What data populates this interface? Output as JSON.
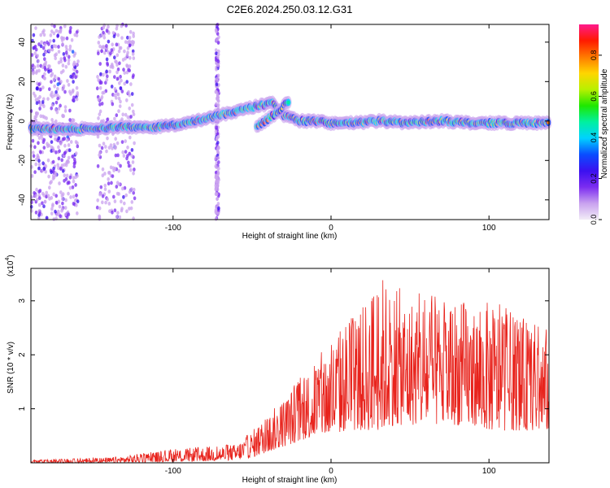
{
  "title": "C2E6.2024.250.03.12.G31",
  "colors": {
    "snr_line": "#e8231c",
    "axis": "#000000",
    "colormap": [
      "#f2ecf7",
      "#c9a2ef",
      "#7b2cf0",
      "#3b10f0",
      "#0a4cff",
      "#00d2ff",
      "#00f0a0",
      "#1ee800",
      "#b8f000",
      "#ffd500",
      "#ff7a00",
      "#ff1a00",
      "#ff1a8c"
    ]
  },
  "chart_data": [
    {
      "type": "heatmap",
      "xlabel": "Height of straight line (km)",
      "ylabel": "Frequency (Hz)",
      "xlim": [
        -190,
        138
      ],
      "ylim": [
        -50,
        49
      ],
      "x_ticks": [
        -100,
        0,
        100
      ],
      "x_tick_labels": [
        "-100",
        "0",
        "100"
      ],
      "y_ticks": [
        -40,
        -20,
        0,
        20,
        40
      ],
      "y_tick_labels": [
        "-40",
        "-20",
        "0",
        "20",
        "40"
      ],
      "colorbar": {
        "label": "Normalized spectral amplitude",
        "range": [
          0,
          0.95
        ],
        "ticks": [
          0,
          0.2,
          0.4,
          0.6,
          0.8
        ],
        "tick_labels": [
          "0.0",
          "0.2",
          "0.4",
          "0.6",
          "0.8"
        ]
      },
      "ridge": {
        "x": [
          -190,
          -160,
          -130,
          -110,
          -90,
          -70,
          -55,
          -45,
          -37,
          -30,
          -20,
          -10,
          0,
          15,
          30,
          50,
          70,
          90,
          110,
          138
        ],
        "frequency": [
          -4,
          -4,
          -3,
          -3,
          -1,
          3,
          6,
          8,
          9,
          3,
          0,
          0,
          -1,
          -1,
          0,
          -1,
          0,
          -1,
          -1,
          -1
        ]
      },
      "secondary_ridge": {
        "x": [
          -47,
          -40,
          -33,
          -27
        ],
        "frequency": [
          -3,
          1,
          5,
          10
        ]
      },
      "noise_bands": [
        {
          "x": [
            -190,
            -160
          ],
          "strength": 1.0
        },
        {
          "x": [
            -148,
            -124
          ],
          "strength": 0.6
        },
        {
          "x": [
            -73,
            -71
          ],
          "strength": 0.4
        }
      ]
    },
    {
      "type": "line",
      "xlabel": "Height of straight line (km)",
      "ylabel": "SNR (10 * v/v)",
      "y_scale_label": "(x10",
      "y_scale_exponent": "4",
      "xlim": [
        -190,
        138
      ],
      "ylim": [
        0,
        3.6
      ],
      "x_ticks": [
        -100,
        0,
        100
      ],
      "x_tick_labels": [
        "-100",
        "0",
        "100"
      ],
      "y_ticks": [
        1,
        2,
        3
      ],
      "y_tick_labels": [
        "1",
        "2",
        "3"
      ],
      "envelope": {
        "x": [
          -190,
          -140,
          -100,
          -80,
          -60,
          -50,
          -40,
          -30,
          -20,
          -10,
          0,
          10,
          20,
          30,
          40,
          50,
          60,
          70,
          80,
          90,
          100,
          110,
          120,
          130,
          138
        ],
        "max": [
          0.05,
          0.1,
          0.25,
          0.3,
          0.35,
          0.6,
          0.9,
          1.2,
          1.6,
          1.9,
          2.3,
          2.7,
          2.9,
          3.55,
          3.3,
          3.1,
          3.2,
          3.0,
          3.1,
          2.9,
          3.0,
          2.9,
          2.7,
          2.6,
          2.5
        ],
        "min": [
          0.0,
          0.0,
          0.02,
          0.03,
          0.05,
          0.1,
          0.2,
          0.3,
          0.4,
          0.5,
          0.5,
          0.6,
          0.6,
          0.6,
          0.7,
          0.7,
          0.7,
          0.7,
          0.7,
          0.7,
          0.6,
          0.6,
          0.6,
          0.6,
          0.6
        ]
      }
    }
  ]
}
